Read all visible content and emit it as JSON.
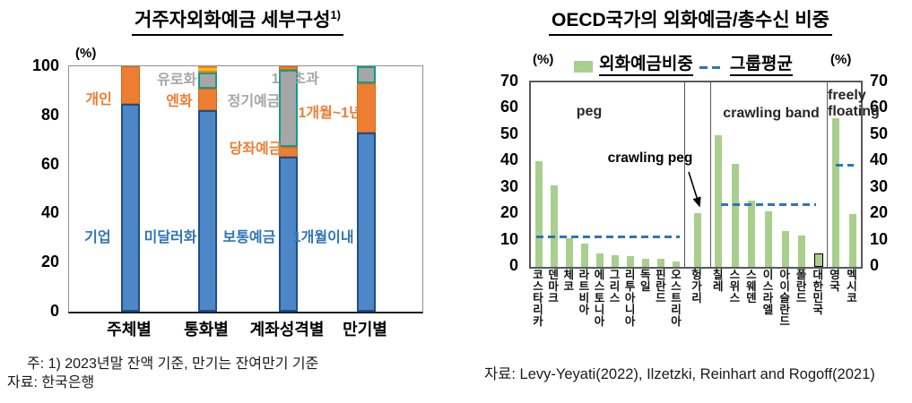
{
  "left_panel": {
    "title": "거주자외화예금 세부구성",
    "title_superscript": "1)",
    "axis_unit": "(%)",
    "note_line1": "주: 1) 2023년말 잔액 기준, 만기는 잔여만기 기준",
    "note_line2": "자료: 한국은행"
  },
  "right_panel": {
    "title": "OECD국가의 외화예금/총수신 비중",
    "axis_unit_left": "(%)",
    "axis_unit_right": "(%)",
    "legend": {
      "bars_label": "외화예금비중",
      "avg_label": "그룹평균"
    },
    "source": "자료: Levy-Yeyati(2022), Ilzetzki, Reinhart and Rogoff(2021)"
  },
  "colors": {
    "blue_fill": "#4d87c8",
    "blue_border": "#1d4e89",
    "orange_fill": "#ed7d31",
    "orange_border": "#c96a1a",
    "yellow_fill": "#ffc000",
    "gray_fill": "#a6a6a6",
    "teal_border": "#0f9c8a",
    "green_bar": "#a9cf8e",
    "avg_line": "#2e75b6",
    "label_blue": "#2e75b6",
    "label_orange": "#ed7d31",
    "label_gray": "#a6a6a6",
    "highlight_border": "#000000"
  },
  "chart_data": [
    {
      "type": "bar",
      "stacked": true,
      "title": "거주자외화예금 세부구성1)",
      "unit": "(%)",
      "ylim": [
        0,
        100
      ],
      "y_ticks": [
        0,
        20,
        40,
        60,
        80,
        100
      ],
      "categories": [
        "주체별",
        "통화별",
        "계좌성격별",
        "만기별"
      ],
      "bars": [
        {
          "category": "주체별",
          "segments": [
            {
              "label": "기업",
              "value": 84.5,
              "color": "blue"
            },
            {
              "label": "개인",
              "value": 15.5,
              "color": "orange"
            }
          ]
        },
        {
          "category": "통화별",
          "segments": [
            {
              "label": "미달러화",
              "value": 82,
              "color": "blue"
            },
            {
              "label": "엔화",
              "value": 9,
              "color": "orange"
            },
            {
              "label": "유로화",
              "value": 6.5,
              "color": "grayGreen"
            },
            {
              "label": "",
              "value": 0.8,
              "color": "orange"
            },
            {
              "label": "",
              "value": 0.9,
              "color": "yellow"
            },
            {
              "label": "",
              "value": 0.8,
              "color": "orange"
            }
          ]
        },
        {
          "category": "계좌성격별",
          "segments": [
            {
              "label": "보통예금",
              "value": 63,
              "color": "blue"
            },
            {
              "label": "당좌예금",
              "value": 4,
              "color": "orange"
            },
            {
              "label": "정기예금",
              "value": 31.5,
              "color": "grayGreen"
            },
            {
              "label": "",
              "value": 1.5,
              "color": "orange"
            }
          ]
        },
        {
          "category": "만기별",
          "segments": [
            {
              "label": "1개월이내",
              "value": 73,
              "color": "blue"
            },
            {
              "label": "1개월~1년",
              "value": 20,
              "color": "orange"
            },
            {
              "label": "1년초과",
              "value": 7,
              "color": "grayGreen"
            }
          ]
        }
      ],
      "annotations": [
        {
          "text": "개인",
          "color": "orange",
          "x": 8.4,
          "y": 12.8
        },
        {
          "text": "기업",
          "color": "blue",
          "x": 8.1,
          "y": 69
        },
        {
          "text": "유로화",
          "color": "gray",
          "x": 30.5,
          "y": 4.7
        },
        {
          "text": "엔화",
          "color": "orange",
          "x": 31.2,
          "y": 13.5
        },
        {
          "text": "미달러화",
          "color": "blue",
          "x": 28.7,
          "y": 69
        },
        {
          "text": "정기예금",
          "color": "gray",
          "x": 52.3,
          "y": 13.5
        },
        {
          "text": "당좌예금",
          "color": "orange",
          "x": 52.8,
          "y": 32.8
        },
        {
          "text": "보통예금",
          "color": "blue",
          "x": 51,
          "y": 69
        },
        {
          "text": "1년초과",
          "color": "gray",
          "x": 64,
          "y": 4.4
        },
        {
          "text": "1개월~1년",
          "color": "orange",
          "x": 73.9,
          "y": 18.2
        },
        {
          "text": "1개월이내",
          "color": "blue",
          "x": 72,
          "y": 69
        }
      ],
      "notes": [
        "주: 1) 2023년말 잔액 기준, 만기는 잔여만기 기준",
        "자료: 한국은행"
      ]
    },
    {
      "type": "bar",
      "title": "OECD국가의 외화예금/총수신 비중",
      "unit": "(%)",
      "ylim": [
        0,
        70
      ],
      "y_ticks": [
        0,
        10,
        20,
        30,
        40,
        50,
        60,
        70
      ],
      "legend": [
        "외화예금비중",
        "그룹평균"
      ],
      "groups": [
        {
          "label": "peg",
          "average": 11.5,
          "countries": [
            "코스타리카",
            "덴마크",
            "체코",
            "라트비아",
            "에스토니아",
            "그리스",
            "리투아니아",
            "독일",
            "핀란드",
            "오스트리아"
          ],
          "values": [
            40,
            31,
            11,
            9,
            5,
            4.5,
            4,
            3,
            3,
            2
          ]
        },
        {
          "label": "crawling peg",
          "average": null,
          "countries": [
            "헝가리"
          ],
          "values": [
            20.5
          ]
        },
        {
          "label": "crawling band",
          "average": 23.5,
          "countries": [
            "칠레",
            "스위스",
            "스웨덴",
            "이스라엘",
            "아이슬란드",
            "폴란드",
            "대한민국"
          ],
          "values": [
            50,
            39,
            25,
            21,
            13.5,
            12,
            5
          ]
        },
        {
          "label": "freely floating",
          "average": 38.5,
          "countries": [
            "영국",
            "멕시코"
          ],
          "values": [
            56.5,
            20
          ]
        }
      ],
      "highlight_country": "대한민국",
      "source": "자료: Levy-Yeyati(2022), Ilzetzki, Reinhart and Rogoff(2021)"
    }
  ]
}
